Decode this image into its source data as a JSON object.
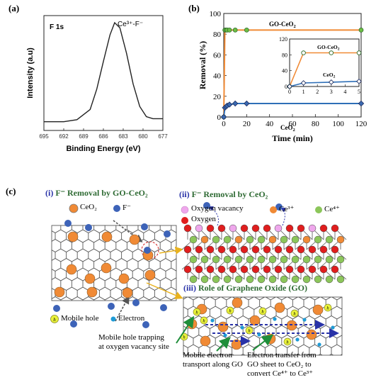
{
  "figure_a": {
    "panel_label": "(a)",
    "peak_label": "F 1s",
    "annotation": "Ce³⁺-F⁻",
    "xlabel": "Binding Energy (eV)",
    "ylabel": "Intensity (a.u)",
    "xticks": [
      "695",
      "692",
      "689",
      "686",
      "683",
      "680",
      "677"
    ]
  },
  "figure_b": {
    "panel_label": "(b)"
  },
  "chart_data": [
    {
      "type": "line",
      "xlabel": "Binding Energy (eV)",
      "ylabel": "Intensity (a.u)",
      "xlim": [
        695,
        677
      ],
      "x": [
        695,
        692,
        690,
        688,
        687,
        686,
        685,
        684.3,
        683.5,
        682.5,
        681.5,
        680.5,
        679.5,
        678.5,
        677
      ],
      "series": [
        {
          "values": [
            0.03,
            0.03,
            0.05,
            0.15,
            0.35,
            0.62,
            0.88,
            1.0,
            0.95,
            0.7,
            0.4,
            0.18,
            0.08,
            0.06,
            0.06
          ]
        }
      ],
      "annotations": [
        "F 1s",
        "Ce³⁺-F⁻"
      ]
    },
    {
      "type": "line",
      "xlabel": "Time (min)",
      "ylabel": "Removal (%)",
      "xlim": [
        0,
        120
      ],
      "ylim": [
        0,
        100
      ],
      "xticks": [
        0,
        20,
        40,
        60,
        80,
        100,
        120
      ],
      "yticks": [
        0,
        20,
        40,
        60,
        80,
        100
      ],
      "series": [
        {
          "name": "GO-CeO₂",
          "color": "#F08A35",
          "x": [
            0,
            1,
            2,
            3,
            5,
            10,
            20,
            120
          ],
          "values": [
            0,
            84,
            84,
            84,
            84,
            84,
            84,
            84
          ]
        },
        {
          "name": "CeO₂",
          "color": "#2E6FB7",
          "x": [
            0,
            1,
            2,
            3,
            5,
            10,
            20,
            120
          ],
          "values": [
            0,
            9,
            10,
            11,
            12,
            13,
            13,
            13
          ]
        }
      ],
      "inset": {
        "xlim": [
          0,
          5
        ],
        "ylim": [
          0,
          120
        ],
        "xticks": [
          0,
          1,
          2,
          3,
          4,
          5
        ],
        "yticks": [
          0,
          40,
          80,
          120
        ],
        "series": [
          {
            "name": "GO-CeO₂",
            "color": "#F08A35",
            "x": [
              0,
              1,
              3,
              5
            ],
            "values": [
              0,
              85,
              85,
              85
            ]
          },
          {
            "name": "CeO₂",
            "color": "#2E6FB7",
            "x": [
              0,
              1,
              3,
              5
            ],
            "values": [
              0,
              9,
              11,
              13
            ]
          }
        ]
      }
    }
  ],
  "figure_c": {
    "panel_label": "(c)",
    "title_i_num": "(i)",
    "title_i": "F⁻ Removal  by GO-CeO₂",
    "legend_ceo2": "CeO₂",
    "legend_f": "F⁻",
    "title_ii_num": "(ii)",
    "title_ii": "F⁻ Removal by CeO₂",
    "legend_vacancy": "Oxygen vacancy",
    "legend_ce3": "Ce³⁺",
    "legend_ce4": "Ce⁴⁺",
    "legend_oxygen": "Oxygen",
    "title_iii_num": "(iii)",
    "title_iii": "Role of Graphene Oxide (GO)",
    "legend_hole": "Mobile hole",
    "legend_electron": "Electron",
    "hole_symbol": "h",
    "note_trap_1": "Mobile hole trapping",
    "note_trap_2": "at oxygen vacancy site",
    "note_transport_1": "Mobile electron",
    "note_transport_2": "transport along GO",
    "note_transfer_1": "Electron transfer from",
    "note_transfer_2": "GO sheet to CeO₂ to",
    "note_transfer_3": "convert Ce⁴⁺ to Ce³⁺"
  },
  "colors": {
    "orange": "#F08A35",
    "blue_dot": "#3D63B8",
    "ce4_green": "#8CC65A",
    "oxygen_red": "#E01E1E",
    "vacancy_pink": "#EFA7EC",
    "title_green": "#2F6B34",
    "title_blue": "#2933A8",
    "electron_cyan": "#1E9BD6",
    "hole_yellow": "#E9F23A"
  }
}
